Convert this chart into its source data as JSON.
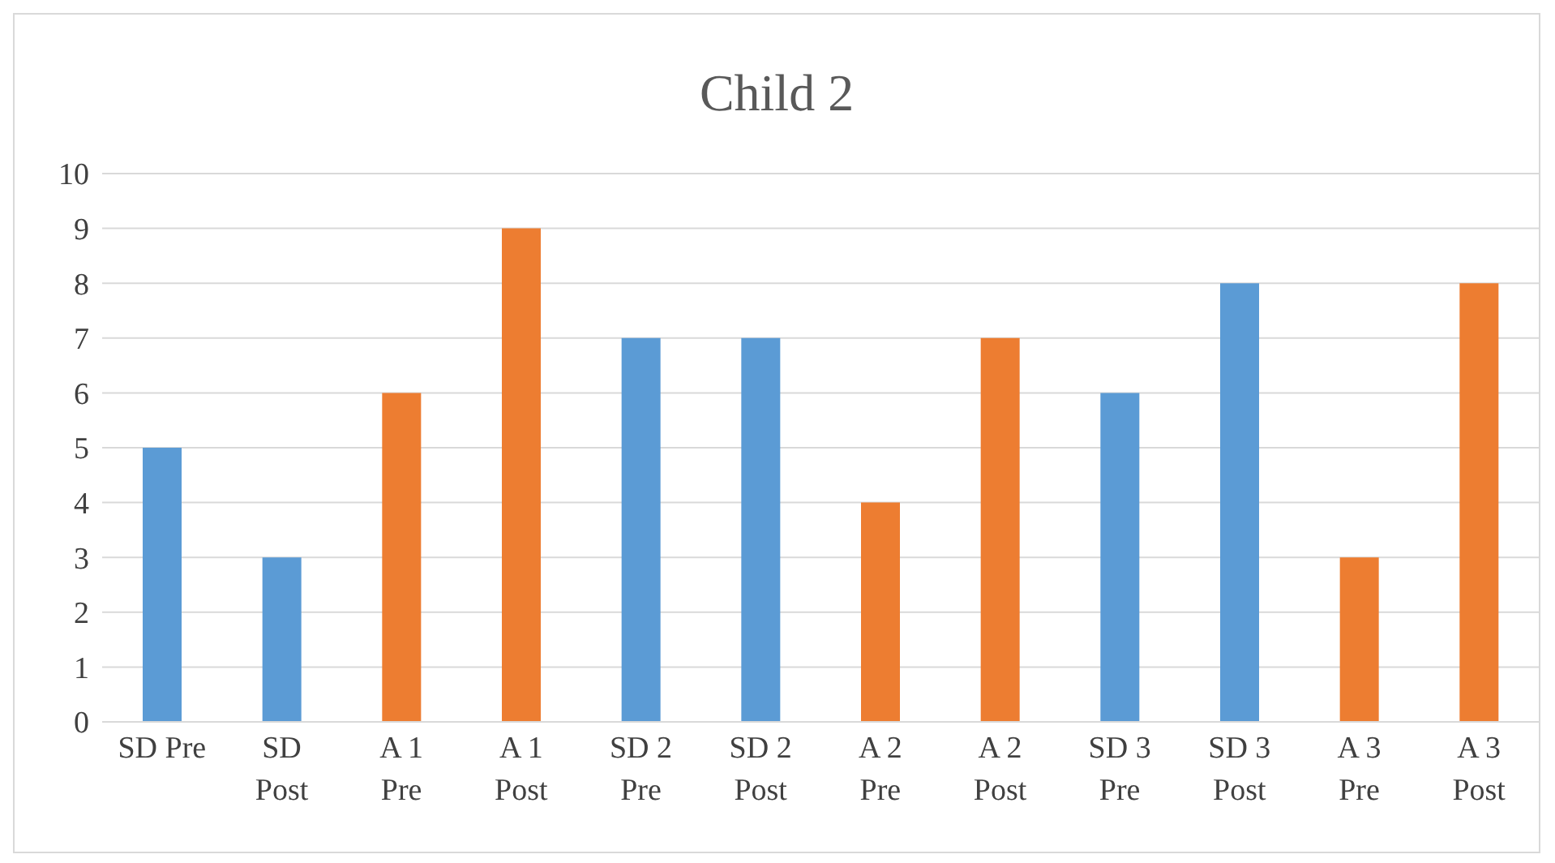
{
  "chart_data": {
    "type": "bar",
    "title": "Child 2",
    "categories": [
      "SD Pre",
      "SD Post",
      "A 1 Pre",
      "A 1 Post",
      "SD 2 Pre",
      "SD 2 Post",
      "A 2 Pre",
      "A 2 Post",
      "SD 3 Pre",
      "SD 3 Post",
      "A 3 Pre",
      "A 3 Post"
    ],
    "values": [
      5,
      3,
      6,
      9,
      7,
      7,
      4,
      7,
      6,
      8,
      3,
      8
    ],
    "colors": [
      "#5b9bd5",
      "#5b9bd5",
      "#ed7d31",
      "#ed7d31",
      "#5b9bd5",
      "#5b9bd5",
      "#ed7d31",
      "#ed7d31",
      "#5b9bd5",
      "#5b9bd5",
      "#ed7d31",
      "#ed7d31"
    ],
    "ylim": [
      0,
      10
    ],
    "yticks": [
      0,
      1,
      2,
      3,
      4,
      5,
      6,
      7,
      8,
      9,
      10
    ],
    "grid": "y",
    "legend": false
  }
}
